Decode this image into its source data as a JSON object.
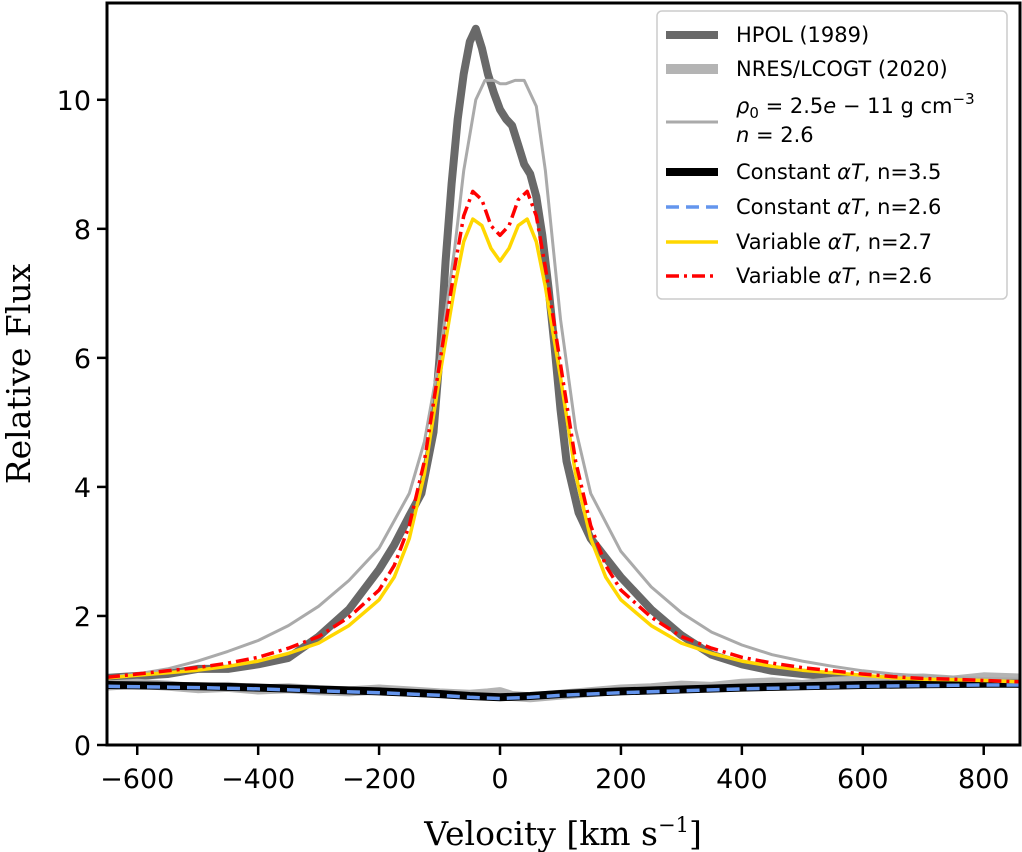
{
  "chart_data": {
    "type": "line",
    "title": "",
    "xlabel": "Velocity [km s",
    "xlabel_sup": "−1",
    "xlabel_close": "]",
    "ylabel": "Relative Flux",
    "xlim": [
      -650,
      860
    ],
    "ylim": [
      0,
      11.5
    ],
    "xticks": [
      -600,
      -400,
      -200,
      0,
      200,
      400,
      600,
      800
    ],
    "xtick_labels": [
      "−600",
      "−400",
      "−200",
      "0",
      "200",
      "400",
      "600",
      "800"
    ],
    "yticks": [
      0,
      2,
      4,
      6,
      8,
      10
    ],
    "ytick_labels": [
      "0",
      "2",
      "4",
      "6",
      "8",
      "10"
    ],
    "grid": false,
    "legend_position": "top-right",
    "series": [
      {
        "name": "HPOL (1989)",
        "color": "#696969",
        "style": "solid",
        "width": "thick",
        "x": [
          -650,
          -550,
          -500,
          -450,
          -400,
          -350,
          -300,
          -250,
          -200,
          -175,
          -150,
          -130,
          -110,
          -100,
          -90,
          -80,
          -70,
          -60,
          -50,
          -40,
          -30,
          -20,
          -10,
          0,
          10,
          20,
          30,
          40,
          50,
          60,
          70,
          80,
          90,
          100,
          110,
          130,
          150,
          175,
          200,
          250,
          300,
          350,
          400,
          450,
          500,
          600,
          700,
          800,
          860
        ],
        "y": [
          1.04,
          1.1,
          1.18,
          1.18,
          1.25,
          1.35,
          1.68,
          2.1,
          2.72,
          3.1,
          3.55,
          3.9,
          4.85,
          6.0,
          7.5,
          8.7,
          9.7,
          10.4,
          10.9,
          11.1,
          10.8,
          10.4,
          10.1,
          9.85,
          9.7,
          9.6,
          9.3,
          9.0,
          8.85,
          8.5,
          7.9,
          7.1,
          6.2,
          5.2,
          4.4,
          3.6,
          3.2,
          2.9,
          2.6,
          2.1,
          1.7,
          1.4,
          1.25,
          1.15,
          1.1,
          1.02,
          1.0,
          0.96,
          0.95
        ]
      },
      {
        "name": "NRES/LCOGT (2020)",
        "color": "#b4b4b4",
        "style": "solid",
        "width": "thick",
        "x": [
          -650,
          -600,
          -550,
          -500,
          -450,
          -400,
          -350,
          -300,
          -250,
          -200,
          -150,
          -100,
          -50,
          -20,
          0,
          20,
          50,
          100,
          150,
          200,
          250,
          300,
          350,
          400,
          450,
          500,
          550,
          600,
          650,
          700,
          750,
          800,
          860
        ],
        "y": [
          0.92,
          0.95,
          0.92,
          0.88,
          0.9,
          0.86,
          0.88,
          0.85,
          0.83,
          0.86,
          0.83,
          0.8,
          0.78,
          0.8,
          0.82,
          0.76,
          0.74,
          0.78,
          0.82,
          0.86,
          0.88,
          0.92,
          0.9,
          0.95,
          0.97,
          0.93,
          0.98,
          1.0,
          1.02,
          1.03,
          1.0,
          1.05,
          1.03
        ]
      },
      {
        "name": "ρ0 = 2.5e − 11 g cm−3 / n = 2.6",
        "color": "#aaaaaa",
        "style": "solid",
        "width": "thin",
        "x": [
          -650,
          -600,
          -550,
          -500,
          -450,
          -400,
          -350,
          -300,
          -250,
          -200,
          -150,
          -125,
          -100,
          -75,
          -60,
          -40,
          -25,
          -10,
          0,
          10,
          25,
          40,
          60,
          75,
          100,
          125,
          150,
          200,
          250,
          300,
          350,
          400,
          450,
          500,
          550,
          600,
          650,
          700,
          750,
          800,
          860
        ],
        "y": [
          1.05,
          1.1,
          1.18,
          1.3,
          1.45,
          1.62,
          1.85,
          2.15,
          2.55,
          3.05,
          3.9,
          4.7,
          6.0,
          7.7,
          8.9,
          10.0,
          10.3,
          10.3,
          10.25,
          10.25,
          10.3,
          10.3,
          9.9,
          8.9,
          6.6,
          4.9,
          3.9,
          3.0,
          2.45,
          2.05,
          1.75,
          1.55,
          1.4,
          1.3,
          1.22,
          1.15,
          1.1,
          1.07,
          1.05,
          1.03,
          1.02
        ]
      },
      {
        "name": "Constant αT, n=3.5",
        "color": "#000000",
        "style": "solid",
        "width": "thick",
        "x": [
          -650,
          -500,
          -400,
          -300,
          -200,
          -100,
          -50,
          0,
          50,
          100,
          200,
          300,
          400,
          500,
          600,
          700,
          800,
          860
        ],
        "y": [
          0.93,
          0.91,
          0.89,
          0.86,
          0.83,
          0.79,
          0.76,
          0.74,
          0.76,
          0.79,
          0.83,
          0.86,
          0.89,
          0.91,
          0.93,
          0.94,
          0.95,
          0.95
        ]
      },
      {
        "name": "Constant αT, n=2.6",
        "color": "#6495ed",
        "style": "dashed",
        "width": "medium",
        "x": [
          -650,
          -500,
          -400,
          -300,
          -200,
          -100,
          -50,
          0,
          50,
          100,
          200,
          300,
          400,
          500,
          600,
          700,
          800,
          860
        ],
        "y": [
          0.91,
          0.89,
          0.87,
          0.84,
          0.81,
          0.77,
          0.74,
          0.72,
          0.74,
          0.77,
          0.81,
          0.84,
          0.87,
          0.89,
          0.91,
          0.92,
          0.93,
          0.93
        ]
      },
      {
        "name": "Variable αT, n=2.7",
        "color": "#ffd700",
        "style": "solid",
        "width": "medium",
        "x": [
          -650,
          -600,
          -550,
          -500,
          -450,
          -400,
          -350,
          -300,
          -250,
          -200,
          -175,
          -150,
          -125,
          -100,
          -75,
          -60,
          -45,
          -30,
          -15,
          0,
          15,
          30,
          45,
          60,
          75,
          100,
          125,
          150,
          175,
          200,
          250,
          300,
          350,
          400,
          450,
          500,
          550,
          600,
          650,
          700,
          750,
          800,
          860
        ],
        "y": [
          1.04,
          1.08,
          1.12,
          1.16,
          1.22,
          1.3,
          1.42,
          1.58,
          1.85,
          2.25,
          2.6,
          3.2,
          4.2,
          5.7,
          7.1,
          7.8,
          8.15,
          8.05,
          7.7,
          7.5,
          7.7,
          8.05,
          8.15,
          7.8,
          7.1,
          5.7,
          4.2,
          3.2,
          2.6,
          2.25,
          1.85,
          1.58,
          1.42,
          1.3,
          1.22,
          1.16,
          1.12,
          1.08,
          1.04,
          1.02,
          1.01,
          1.0,
          0.98
        ]
      },
      {
        "name": "Variable αT, n=2.6",
        "color": "#ff0000",
        "style": "dashdot",
        "width": "medium",
        "x": [
          -650,
          -600,
          -550,
          -500,
          -450,
          -400,
          -350,
          -300,
          -250,
          -200,
          -175,
          -150,
          -125,
          -100,
          -75,
          -60,
          -45,
          -30,
          -15,
          0,
          15,
          30,
          45,
          60,
          75,
          100,
          125,
          150,
          175,
          200,
          250,
          300,
          350,
          400,
          450,
          500,
          550,
          600,
          650,
          700,
          750,
          800,
          860
        ],
        "y": [
          1.05,
          1.1,
          1.15,
          1.2,
          1.27,
          1.36,
          1.5,
          1.68,
          1.98,
          2.4,
          2.78,
          3.4,
          4.4,
          5.9,
          7.4,
          8.2,
          8.58,
          8.45,
          8.05,
          7.9,
          8.05,
          8.45,
          8.58,
          8.2,
          7.4,
          5.9,
          4.4,
          3.4,
          2.78,
          2.4,
          1.98,
          1.68,
          1.5,
          1.36,
          1.27,
          1.2,
          1.15,
          1.1,
          1.06,
          1.03,
          1.02,
          1.0,
          0.98
        ]
      }
    ]
  }
}
